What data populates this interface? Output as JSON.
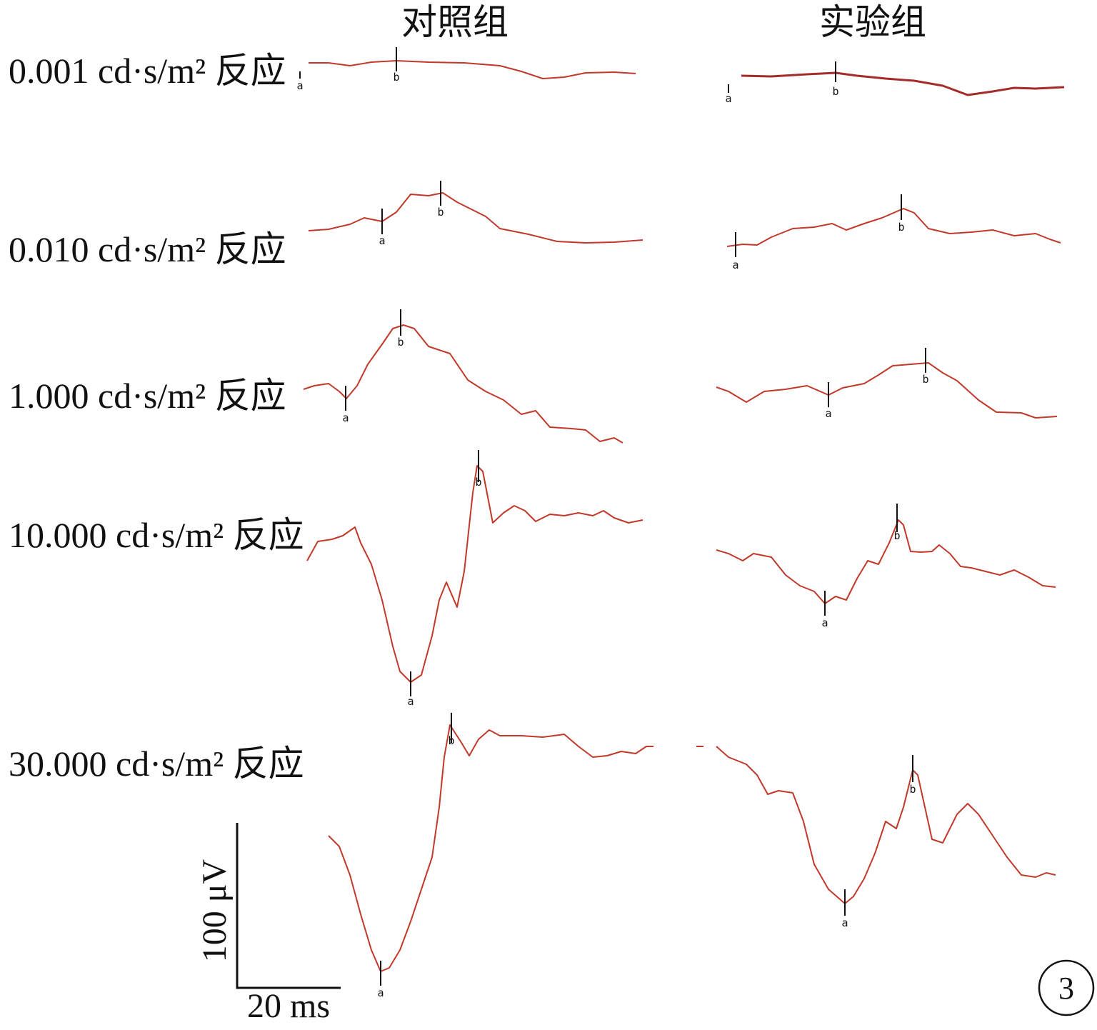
{
  "column_titles": [
    "对照组",
    "实验组"
  ],
  "rows": [
    {
      "label": "0.001 cd·s/m² 反应",
      "control_markers": [
        "a",
        "b"
      ],
      "experiment_markers": [
        "a",
        "b"
      ]
    },
    {
      "label": "0.010 cd·s/m² 反应",
      "control_markers": [
        "a",
        "b"
      ],
      "experiment_markers": [
        "a",
        "b"
      ]
    },
    {
      "label": "1.000 cd·s/m² 反应",
      "control_markers": [
        "a",
        "b"
      ],
      "experiment_markers": [
        "a",
        "b"
      ]
    },
    {
      "label": "10.000 cd·s/m² 反应",
      "control_markers": [
        "a",
        "b"
      ],
      "experiment_markers": [
        "a",
        "b"
      ]
    },
    {
      "label": "30.000 cd·s/m² 反应",
      "control_markers": [
        "a",
        "b"
      ],
      "experiment_markers": [
        "a",
        "b"
      ]
    }
  ],
  "scale_bar": {
    "amplitude": "100 μV",
    "time": "20 ms"
  },
  "figure_number": "3"
}
